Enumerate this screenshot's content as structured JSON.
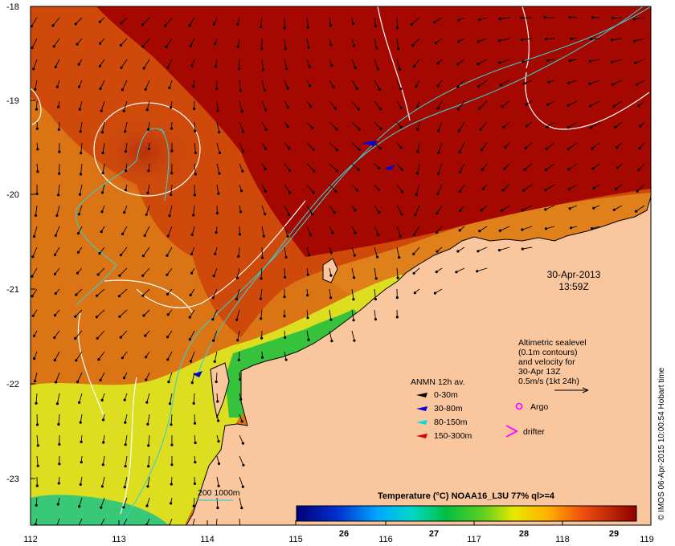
{
  "map": {
    "x_ticks": [
      "112",
      "113",
      "114",
      "115",
      "116",
      "117",
      "118",
      "119"
    ],
    "y_ticks": [
      "-18",
      "-19",
      "-20",
      "-21",
      "-22",
      "-23"
    ],
    "date": "30-Apr-2013",
    "time": "13:59Z",
    "sealevel_note": [
      "Altimetric sealevel",
      "(0.1m contours)",
      "and velocity for",
      "30-Apr 13Z",
      "0.5m/s (1kt 24h)"
    ],
    "anmn": {
      "title": "ANMN 12h av.",
      "items": [
        {
          "label": "0-30m",
          "color": "#000000"
        },
        {
          "label": "30-80m",
          "color": "#0000dd"
        },
        {
          "label": "80-150m",
          "color": "#00dddd"
        },
        {
          "label": "150-300m",
          "color": "#dd0000"
        }
      ]
    },
    "argo_label": "Argo",
    "drifter_label": "drifter",
    "bathy_label": "200  1000m",
    "colorbar": {
      "title": "Temperature (°C) NOAA16_L3U 77% ql>=4",
      "ticks": [
        "26",
        "27",
        "28",
        "29"
      ]
    },
    "credit": "© IMOS 06-Apr-2015 10:00:54 Hobart time",
    "colors": {
      "land": "#f9c69e",
      "hot": "#a50800",
      "warm": "#cf4a0a",
      "mid": "#e0801a",
      "yellow": "#dede20",
      "green": "#36c23a",
      "bathy": "#3ccccc",
      "contour": "#ffffff",
      "argo": "#ff00ff"
    }
  }
}
